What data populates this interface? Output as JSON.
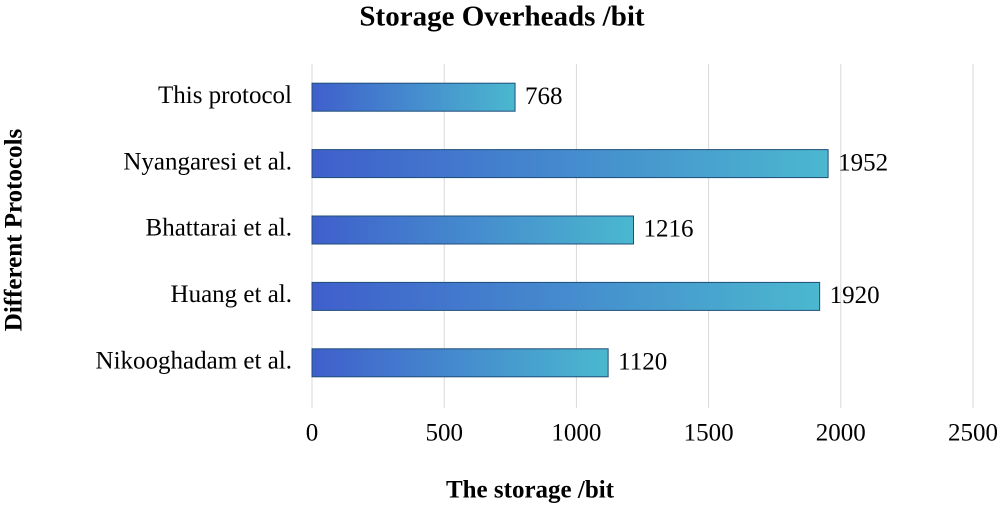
{
  "chart_data": {
    "type": "hbar",
    "title": "Storage Overheads /bit",
    "x_label": "The storage /bit",
    "y_label": "Different Protocols",
    "categories": [
      "This protocol",
      "Nyangaresi et al.",
      "Bhattarai et al.",
      "Huang et al.",
      "Nikooghadam et al."
    ],
    "values": [
      768,
      1952,
      1216,
      1920,
      1120
    ],
    "gradient": [
      "#3f5fcc",
      "#4bb8cf"
    ],
    "edge_color": "#1f4e79",
    "xlim": [
      0,
      2500
    ],
    "xticks": [
      0,
      500,
      1000,
      1500,
      2000,
      2500
    ],
    "grid": true
  }
}
